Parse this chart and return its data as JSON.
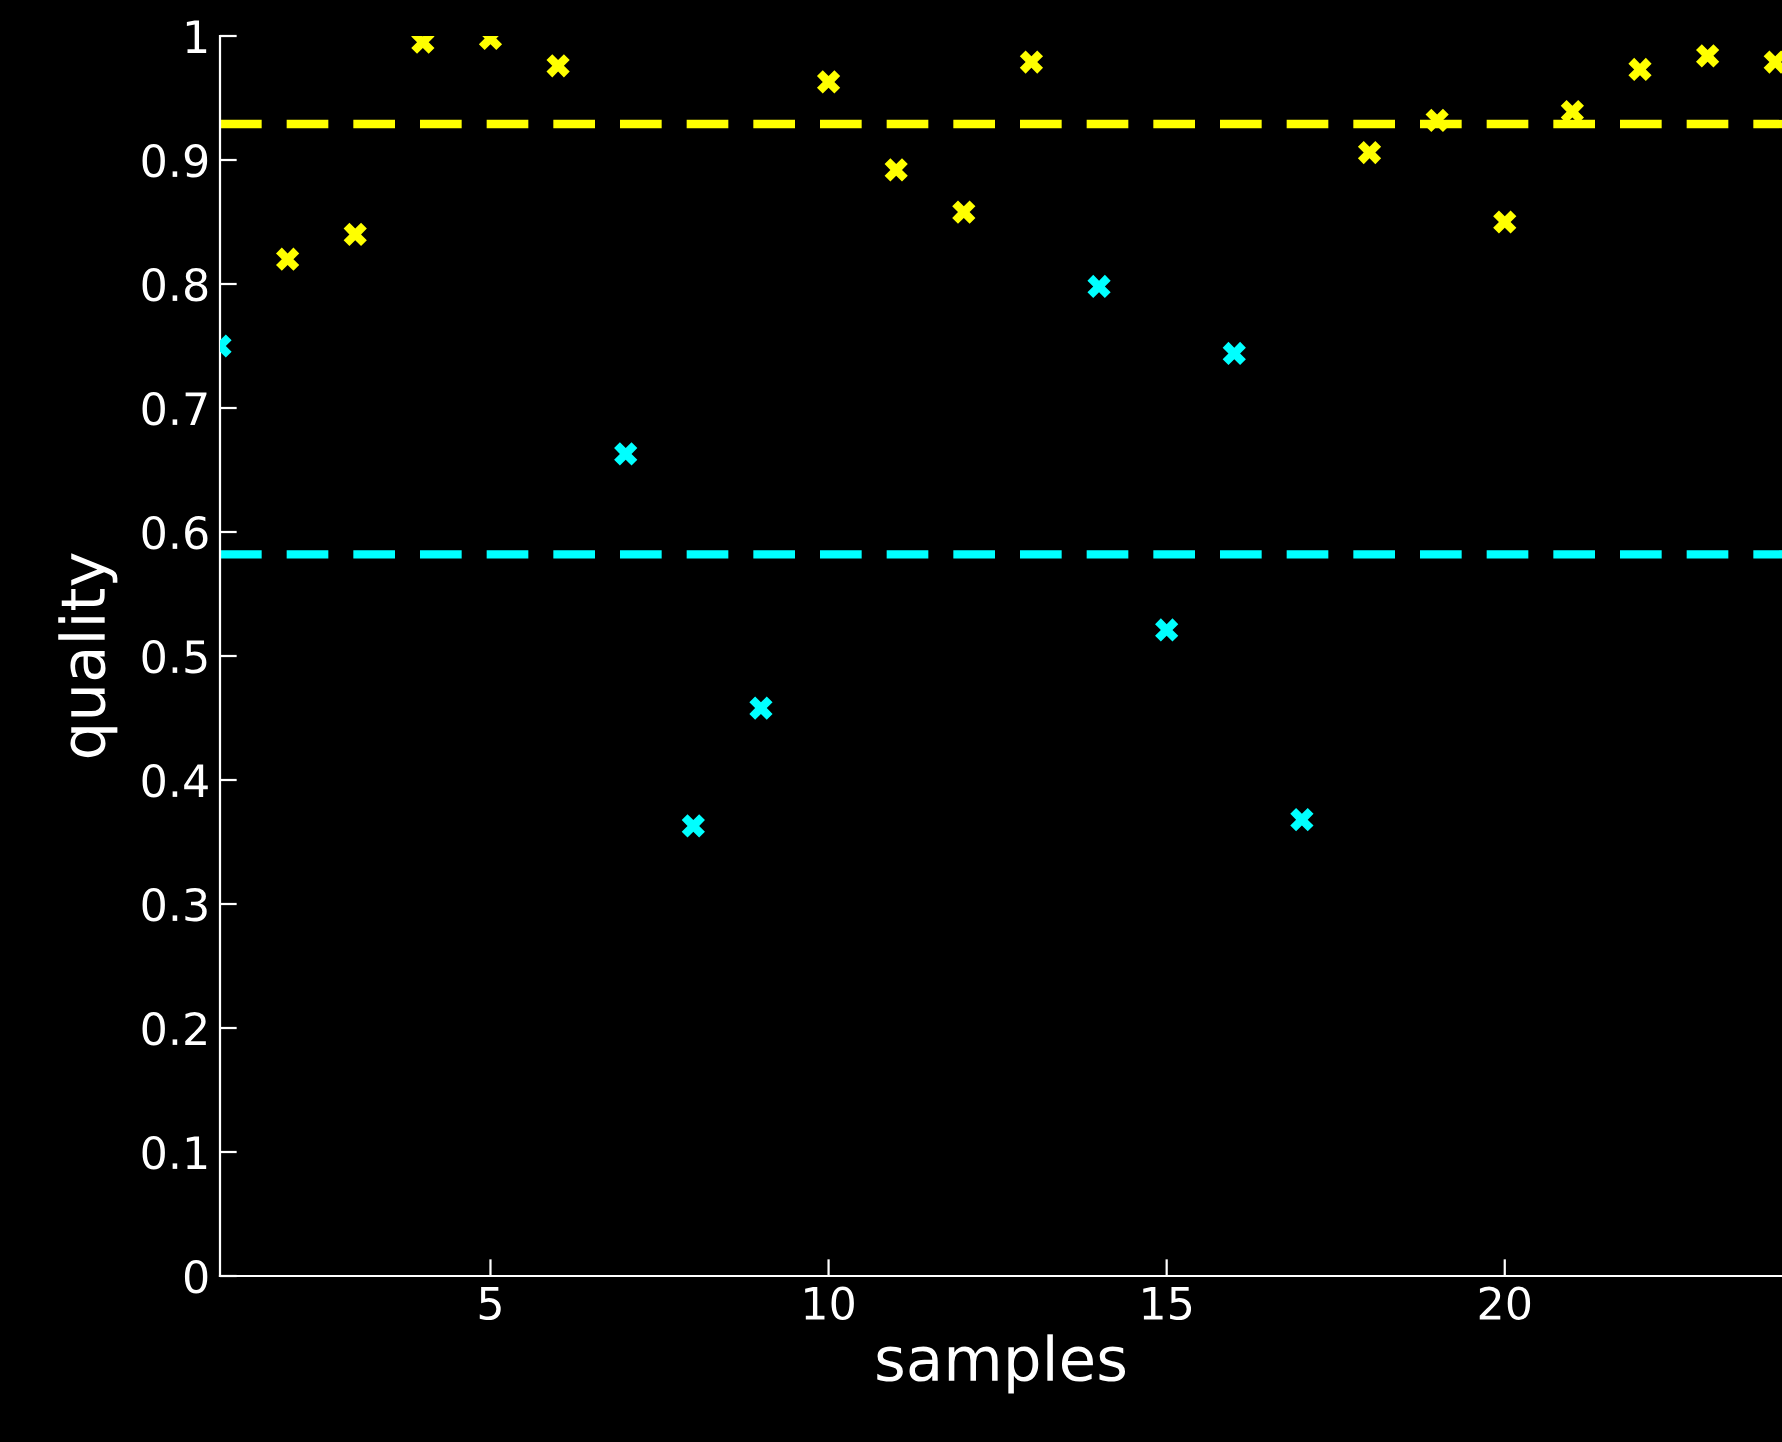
{
  "chart_data": {
    "type": "scatter",
    "xlabel": "samples",
    "ylabel": "quality",
    "xlim": [
      1,
      24.1
    ],
    "ylim": [
      0,
      1
    ],
    "xticks": [
      5,
      10,
      15,
      20
    ],
    "yticks": [
      0,
      0.1,
      0.2,
      0.3,
      0.4,
      0.5,
      0.6,
      0.7,
      0.8,
      0.9,
      1
    ],
    "marker": "cross",
    "series": [
      {
        "color": "#ffff00",
        "x": [
          2,
          3,
          4,
          5,
          6,
          10,
          11,
          12,
          13,
          18,
          19,
          20,
          21,
          22,
          23,
          24
        ],
        "values": [
          0.82,
          0.84,
          0.995,
          0.998,
          0.976,
          0.963,
          0.892,
          0.858,
          0.979,
          0.906,
          0.932,
          0.85,
          0.939,
          0.973,
          0.984,
          0.979
        ]
      },
      {
        "color": "#00ffff",
        "x": [
          1,
          7,
          8,
          9,
          14,
          15,
          16,
          17
        ],
        "values": [
          0.75,
          0.663,
          0.363,
          0.458,
          0.798,
          0.521,
          0.744,
          0.368
        ]
      }
    ],
    "ref_lines": [
      {
        "axis": "y",
        "value": 0.929,
        "color": "#ffff00",
        "line_style": "dashed"
      },
      {
        "axis": "y",
        "value": 0.582,
        "color": "#00ffff",
        "line_style": "dashed"
      }
    ]
  }
}
